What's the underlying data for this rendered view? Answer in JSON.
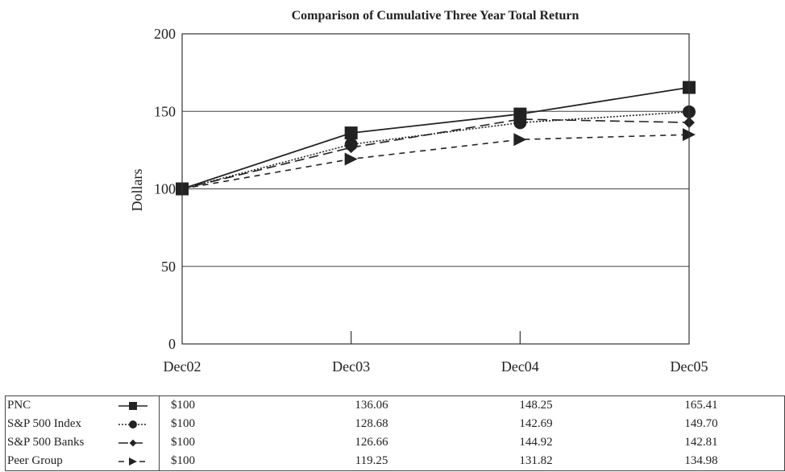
{
  "chart_data": {
    "type": "line",
    "title": "Comparison of Cumulative Three Year Total Return",
    "ylabel": "Dollars",
    "xlabel": "",
    "categories": [
      "Dec02",
      "Dec03",
      "Dec04",
      "Dec05"
    ],
    "ylim": [
      0,
      200
    ],
    "yticks": [
      0,
      50,
      100,
      150,
      200
    ],
    "grid": true,
    "legend": "bottom-table",
    "series": [
      {
        "name": "PNC",
        "values": [
          100,
          136.06,
          148.25,
          165.41
        ],
        "display": [
          "$100",
          "136.06",
          "148.25",
          "165.41"
        ],
        "marker": "square",
        "dash": "solid",
        "color": "#222222"
      },
      {
        "name": "S&P 500 Index",
        "values": [
          100,
          128.68,
          142.69,
          149.7
        ],
        "display": [
          "$100",
          "128.68",
          "142.69",
          "149.70"
        ],
        "marker": "circle",
        "dash": "dotted",
        "color": "#222222"
      },
      {
        "name": "S&P 500 Banks",
        "values": [
          100,
          126.66,
          144.92,
          142.81
        ],
        "display": [
          "$100",
          "126.66",
          "144.92",
          "142.81"
        ],
        "marker": "diamond",
        "dash": "longdash",
        "color": "#222222"
      },
      {
        "name": "Peer Group",
        "values": [
          100,
          119.25,
          131.82,
          134.98
        ],
        "display": [
          "$100",
          "119.25",
          "131.82",
          "134.98"
        ],
        "marker": "triangle",
        "dash": "shortdash",
        "color": "#222222"
      }
    ]
  }
}
